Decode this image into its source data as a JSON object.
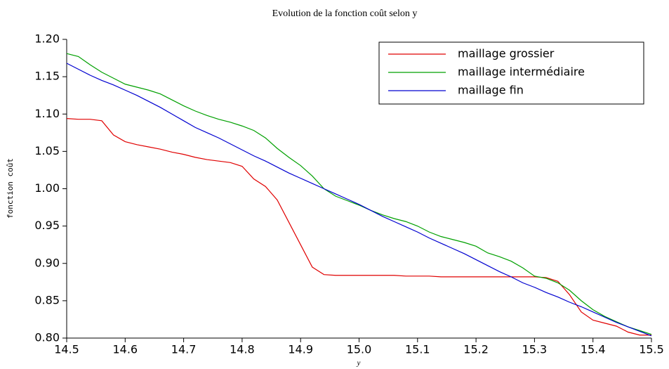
{
  "chart_data": {
    "type": "line",
    "title": "Evolution de la fonction coût selon y",
    "x_label": "y",
    "y_label": "fonction coût",
    "x": [
      14.5,
      14.52,
      14.54,
      14.56,
      14.58,
      14.6,
      14.62,
      14.64,
      14.66,
      14.68,
      14.7,
      14.72,
      14.74,
      14.76,
      14.78,
      14.8,
      14.82,
      14.84,
      14.86,
      14.88,
      14.9,
      14.92,
      14.94,
      14.96,
      14.98,
      15,
      15.02,
      15.04,
      15.06,
      15.08,
      15.1,
      15.12,
      15.14,
      15.16,
      15.18,
      15.2,
      15.22,
      15.24,
      15.26,
      15.28,
      15.3,
      15.32,
      15.34,
      15.36,
      15.38,
      15.4,
      15.42,
      15.44,
      15.46,
      15.48,
      15.5
    ],
    "series": [
      {
        "name": "maillage grossier",
        "color": "#e00000",
        "values": [
          1.094,
          1.093,
          1.093,
          1.091,
          1.072,
          1.063,
          1.059,
          1.056,
          1.053,
          1.049,
          1.046,
          1.042,
          1.039,
          1.037,
          1.035,
          1.03,
          1.013,
          1.003,
          0.985,
          0.955,
          0.925,
          0.895,
          0.885,
          0.884,
          0.884,
          0.884,
          0.884,
          0.884,
          0.884,
          0.883,
          0.883,
          0.883,
          0.882,
          0.882,
          0.882,
          0.882,
          0.882,
          0.882,
          0.882,
          0.882,
          0.882,
          0.881,
          0.876,
          0.858,
          0.835,
          0.824,
          0.82,
          0.816,
          0.808,
          0.804,
          0.804
        ]
      },
      {
        "name": "maillage intermédiaire",
        "color": "#00a000",
        "values": [
          1.181,
          1.177,
          1.166,
          1.156,
          1.148,
          1.14,
          1.136,
          1.132,
          1.127,
          1.119,
          1.111,
          1.104,
          1.098,
          1.093,
          1.089,
          1.084,
          1.078,
          1.068,
          1.054,
          1.042,
          1.031,
          1.017,
          1.0,
          0.99,
          0.984,
          0.978,
          0.971,
          0.965,
          0.96,
          0.956,
          0.95,
          0.942,
          0.936,
          0.932,
          0.928,
          0.923,
          0.914,
          0.909,
          0.903,
          0.894,
          0.883,
          0.88,
          0.874,
          0.864,
          0.85,
          0.838,
          0.829,
          0.822,
          0.815,
          0.81,
          0.805
        ]
      },
      {
        "name": "maillage fin",
        "color": "#0000d0",
        "values": [
          1.168,
          1.16,
          1.152,
          1.145,
          1.139,
          1.132,
          1.125,
          1.117,
          1.109,
          1.1,
          1.091,
          1.082,
          1.075,
          1.068,
          1.06,
          1.052,
          1.044,
          1.037,
          1.029,
          1.021,
          1.014,
          1.007,
          1.0,
          0.993,
          0.986,
          0.979,
          0.971,
          0.963,
          0.956,
          0.949,
          0.942,
          0.934,
          0.927,
          0.92,
          0.913,
          0.905,
          0.897,
          0.889,
          0.882,
          0.874,
          0.868,
          0.861,
          0.855,
          0.848,
          0.842,
          0.835,
          0.828,
          0.821,
          0.815,
          0.809,
          0.803
        ]
      }
    ],
    "xlim": [
      14.5,
      15.5
    ],
    "ylim": [
      0.8,
      1.2
    ],
    "xticks": [
      14.5,
      14.6,
      14.7,
      14.8,
      14.9,
      {
        "value": 15,
        "label": "15.0"
      },
      15.1,
      15.2,
      15.3,
      15.4,
      15.5
    ],
    "yticks": [
      {
        "value": 0.8,
        "label": "0.80"
      },
      0.85,
      {
        "value": 0.9,
        "label": "0.90"
      },
      0.95,
      {
        "value": 1,
        "label": "1.00"
      },
      1.05,
      {
        "value": 1.1,
        "label": "1.10"
      },
      1.15,
      {
        "value": 1.2,
        "label": "1.20"
      }
    ],
    "legend": "upper right",
    "grid": false
  }
}
